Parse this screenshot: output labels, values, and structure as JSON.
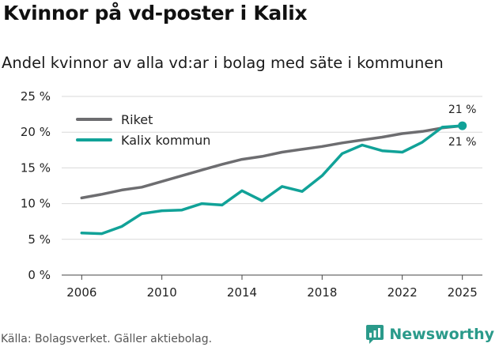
{
  "title": "Kvinnor på vd-poster i Kalix",
  "subtitle": "Andel kvinnor av alla vd:ar i bolag med säte i kommunen",
  "source": "Källa: Bolagsverket. Gäller aktiebolag.",
  "brand": "Newsworthy",
  "colors": {
    "riket": "#6d6d70",
    "kalix": "#11a298",
    "grid": "#d9d9d9"
  },
  "chart_data": {
    "type": "line",
    "title": "Kvinnor på vd-poster i Kalix",
    "xlabel": "",
    "ylabel": "",
    "x": [
      2006,
      2007,
      2008,
      2009,
      2010,
      2011,
      2012,
      2013,
      2014,
      2015,
      2016,
      2017,
      2018,
      2019,
      2020,
      2021,
      2022,
      2023,
      2024,
      2025
    ],
    "xlim": [
      2005,
      2026
    ],
    "ylim": [
      0,
      25
    ],
    "xticks": [
      2006,
      2010,
      2014,
      2018,
      2022,
      2025
    ],
    "xtick_labels": [
      "2006",
      "2010",
      "2014",
      "2018",
      "2022",
      "2025"
    ],
    "yticks": [
      0,
      5,
      10,
      15,
      20,
      25
    ],
    "ytick_labels": [
      "0 %",
      "5 %",
      "10 %",
      "15 %",
      "20 %",
      "25 %"
    ],
    "legend": "top-left",
    "series": [
      {
        "name": "Riket",
        "color": "#6d6d70",
        "values": [
          10.8,
          11.3,
          11.9,
          12.3,
          13.1,
          13.9,
          14.7,
          15.5,
          16.2,
          16.6,
          17.2,
          17.6,
          18.0,
          18.5,
          18.9,
          19.3,
          19.8,
          20.1,
          20.6,
          20.9
        ],
        "end_label": "21 %"
      },
      {
        "name": "Kalix kommun",
        "color": "#11a298",
        "values": [
          5.9,
          5.8,
          6.8,
          8.6,
          9.0,
          9.1,
          10.0,
          9.8,
          11.8,
          10.4,
          12.4,
          11.7,
          13.9,
          17.0,
          18.2,
          17.4,
          17.2,
          18.6,
          20.7,
          20.9
        ],
        "end_label": "21 %"
      }
    ]
  }
}
